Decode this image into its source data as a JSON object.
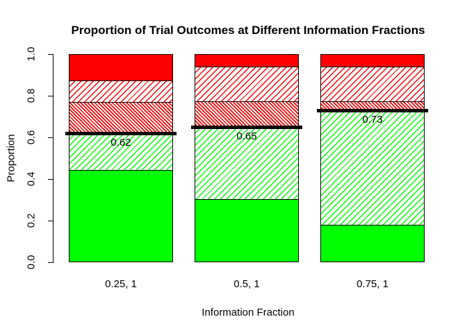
{
  "chart_data": {
    "type": "bar",
    "stacked": true,
    "title": "Proportion of Trial Outcomes at Different Information Fractions",
    "xlabel": "Information Fraction",
    "ylabel": "Proportion",
    "ylim": [
      0,
      1
    ],
    "grid": false,
    "legend_position": "none",
    "ytick_labels": [
      "0.0",
      "0.2",
      "0.4",
      "0.6",
      "0.8",
      "1.0"
    ],
    "categories": [
      "0.25, 1",
      "0.5, 1",
      "0.75, 1"
    ],
    "series": [
      {
        "name": "green-solid",
        "style": "solid",
        "color": "#00FF00",
        "values": [
          0.445,
          0.305,
          0.18
        ]
      },
      {
        "name": "green-hatched",
        "style": "hatch-fwd",
        "color": "#00FF00",
        "values": [
          0.175,
          0.345,
          0.55
        ]
      },
      {
        "name": "red-dense-hatched",
        "style": "hatch-back-dense",
        "color": "#FF0000",
        "values": [
          0.15,
          0.125,
          0.045
        ]
      },
      {
        "name": "red-hatched",
        "style": "hatch-fwd",
        "color": "#FF0000",
        "values": [
          0.105,
          0.165,
          0.165
        ]
      },
      {
        "name": "red-solid",
        "style": "solid",
        "color": "#FF0000",
        "values": [
          0.125,
          0.06,
          0.06
        ]
      }
    ],
    "thresholds": [
      {
        "category": "0.25, 1",
        "value": 0.62,
        "label": "0.62"
      },
      {
        "category": "0.5, 1",
        "value": 0.65,
        "label": "0.65"
      },
      {
        "category": "0.75, 1",
        "value": 0.73,
        "label": "0.73"
      }
    ],
    "colors": {
      "threshold_line": "#000000",
      "axis": "#000000",
      "hatch_background": "#FFFFFF",
      "plot_background": "#FFFFFF"
    }
  }
}
